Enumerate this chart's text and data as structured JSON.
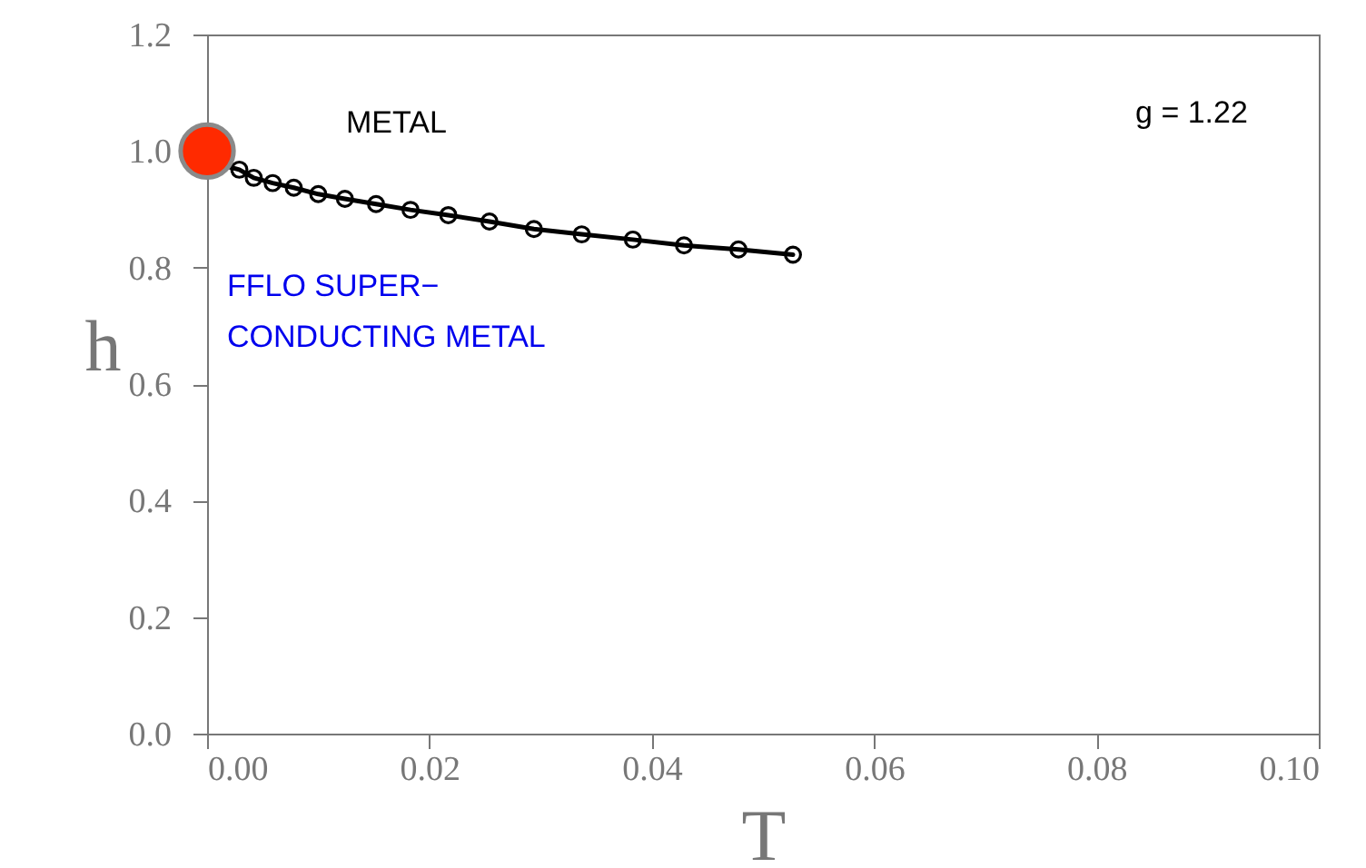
{
  "chart_data": {
    "type": "scatter",
    "xlabel": "T",
    "ylabel": "h",
    "xlim": [
      0,
      0.1
    ],
    "xticks": [
      {
        "value": 0,
        "label": "0.00"
      },
      0.02,
      0.04,
      0.06,
      0.08,
      {
        "value": 0.1,
        "label": "0.10"
      }
    ],
    "ylim": [
      0,
      1.2
    ],
    "yticks": [
      {
        "value": 0,
        "label": "0.0"
      },
      0.2,
      0.4,
      0.6,
      0.8,
      {
        "value": 1,
        "label": "1.0"
      },
      1.2
    ],
    "grid": false,
    "annotations": [
      "g = 1.22",
      "METAL",
      "FFLO SUPER−\nCONDUCTING METAL"
    ],
    "series": [
      {
        "type": "line",
        "color": "#000000",
        "marker": "none",
        "x": [
          0.0015,
          0.0029,
          0.0042,
          0.0059,
          0.0078,
          0.01,
          0.0124,
          0.0152,
          0.0183,
          0.0217,
          0.0254,
          0.0294,
          0.0337,
          0.0383,
          0.0429,
          0.0478,
          0.0527
        ],
        "values": [
          0.975,
          0.968,
          0.954,
          0.945,
          0.937,
          0.926,
          0.918,
          0.909,
          0.899,
          0.89,
          0.879,
          0.866,
          0.857,
          0.848,
          0.838,
          0.831,
          0.822
        ]
      },
      {
        "type": "scatter",
        "color": "#000000",
        "marker": "circle",
        "x": [
          0.0029,
          0.0042,
          0.0059,
          0.0078,
          0.01,
          0.0124,
          0.0152,
          0.0183,
          0.0217,
          0.0254,
          0.0294,
          0.0337,
          0.0383,
          0.0429,
          0.0478,
          0.0527
        ],
        "values": [
          0.968,
          0.954,
          0.945,
          0.937,
          0.926,
          0.918,
          0.909,
          0.899,
          0.89,
          0.879,
          0.866,
          0.857,
          0.848,
          0.838,
          0.831,
          0.822
        ]
      },
      {
        "type": "scatter",
        "color": "#ff2a00",
        "marker": "circle",
        "x": [
          0
        ],
        "values": [
          1.0
        ]
      }
    ]
  }
}
